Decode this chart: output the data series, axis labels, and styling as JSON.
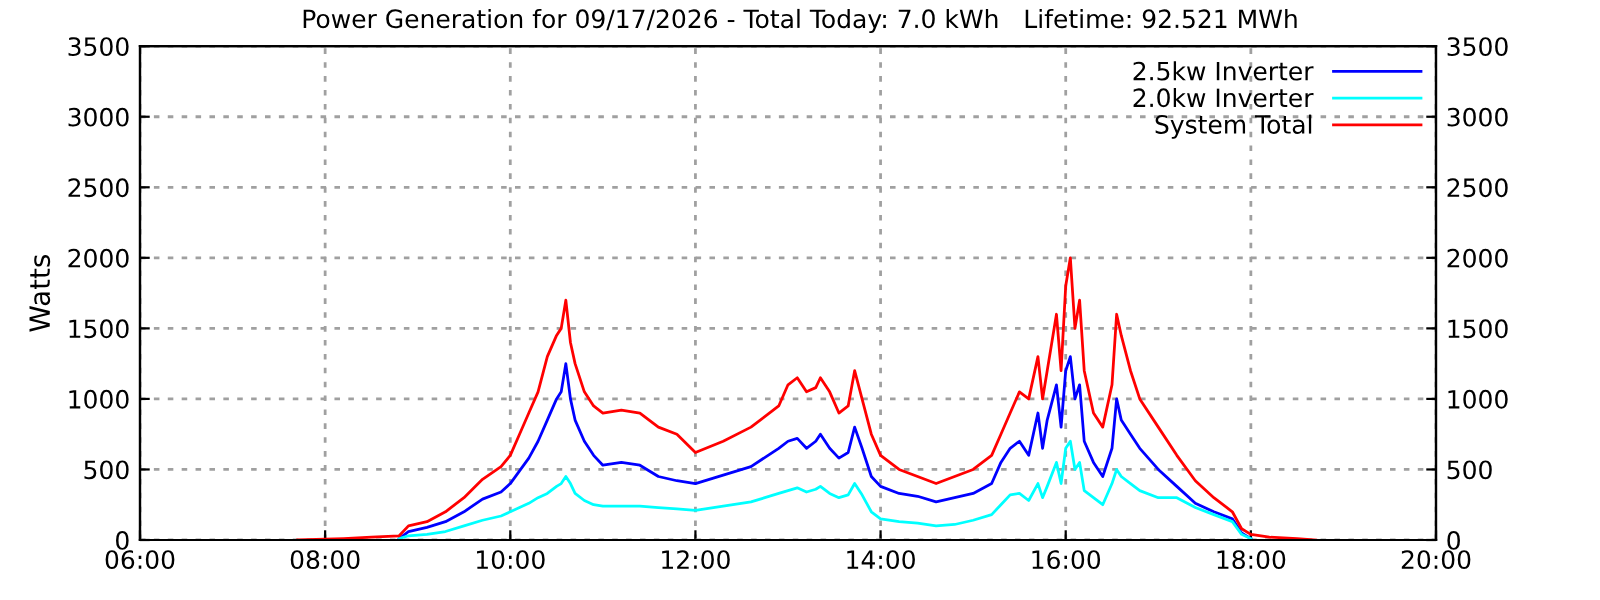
{
  "chart_data": {
    "type": "line",
    "title": "Power Generation for 09/17/2026 - Total Today: 7.0 kWh   Lifetime: 92.521 MWh",
    "ylabel": "Watts",
    "x": [
      7.7,
      8.2,
      8.5,
      8.8,
      8.9,
      9.1,
      9.3,
      9.5,
      9.7,
      9.9,
      10.0,
      10.1,
      10.2,
      10.3,
      10.4,
      10.5,
      10.55,
      10.6,
      10.65,
      10.7,
      10.8,
      10.9,
      11.0,
      11.2,
      11.4,
      11.6,
      11.8,
      12.0,
      12.3,
      12.6,
      12.9,
      13.0,
      13.1,
      13.2,
      13.3,
      13.35,
      13.45,
      13.55,
      13.65,
      13.72,
      13.8,
      13.9,
      14.0,
      14.2,
      14.4,
      14.6,
      14.8,
      15.0,
      15.2,
      15.3,
      15.4,
      15.5,
      15.6,
      15.7,
      15.75,
      15.8,
      15.9,
      15.95,
      16.0,
      16.05,
      16.1,
      16.15,
      16.2,
      16.3,
      16.4,
      16.5,
      16.55,
      16.6,
      16.7,
      16.8,
      17.0,
      17.2,
      17.4,
      17.6,
      17.8,
      17.9,
      18.0,
      18.2,
      18.5,
      18.7
    ],
    "series": [
      {
        "name": "2.5kw Inverter",
        "color": "#0000ff",
        "values": [
          null,
          null,
          null,
          10,
          60,
          90,
          130,
          200,
          290,
          340,
          400,
          490,
          580,
          700,
          850,
          1000,
          1050,
          1250,
          1000,
          850,
          700,
          600,
          530,
          550,
          530,
          450,
          420,
          400,
          460,
          520,
          650,
          700,
          720,
          650,
          700,
          750,
          650,
          580,
          620,
          800,
          650,
          450,
          380,
          330,
          310,
          270,
          300,
          330,
          400,
          550,
          650,
          700,
          600,
          900,
          650,
          850,
          1100,
          800,
          1200,
          1300,
          1000,
          1100,
          700,
          550,
          450,
          650,
          1000,
          850,
          750,
          650,
          500,
          380,
          260,
          200,
          150,
          50,
          10,
          null,
          null,
          null
        ]
      },
      {
        "name": "2.0kw Inverter",
        "color": "#00ffff",
        "values": [
          null,
          null,
          null,
          10,
          30,
          40,
          60,
          100,
          140,
          170,
          200,
          230,
          260,
          300,
          330,
          380,
          400,
          450,
          400,
          330,
          280,
          250,
          240,
          240,
          240,
          230,
          220,
          210,
          240,
          270,
          330,
          350,
          370,
          340,
          360,
          380,
          330,
          300,
          320,
          400,
          320,
          200,
          150,
          130,
          120,
          100,
          110,
          140,
          180,
          250,
          320,
          330,
          280,
          400,
          300,
          380,
          550,
          400,
          650,
          700,
          500,
          550,
          350,
          300,
          250,
          400,
          500,
          450,
          400,
          350,
          300,
          300,
          230,
          180,
          130,
          40,
          10,
          null,
          null,
          null
        ]
      },
      {
        "name": "System Total",
        "color": "#ff0000",
        "values": [
          0,
          10,
          20,
          30,
          100,
          130,
          200,
          300,
          430,
          520,
          600,
          750,
          900,
          1050,
          1300,
          1450,
          1500,
          1700,
          1400,
          1250,
          1050,
          950,
          900,
          920,
          900,
          800,
          750,
          620,
          700,
          800,
          950,
          1100,
          1150,
          1050,
          1080,
          1150,
          1050,
          900,
          950,
          1200,
          1000,
          750,
          600,
          500,
          450,
          400,
          450,
          500,
          600,
          750,
          900,
          1050,
          1000,
          1300,
          1000,
          1200,
          1600,
          1200,
          1800,
          2000,
          1500,
          1700,
          1200,
          900,
          800,
          1100,
          1600,
          1450,
          1200,
          1000,
          800,
          600,
          420,
          300,
          200,
          80,
          40,
          20,
          10,
          0
        ]
      }
    ],
    "xlim": [
      6,
      20
    ],
    "xticks": [
      {
        "value": 6,
        "label": "06:00"
      },
      {
        "value": 8,
        "label": "08:00"
      },
      {
        "value": 10,
        "label": "10:00"
      },
      {
        "value": 12,
        "label": "12:00"
      },
      {
        "value": 14,
        "label": "14:00"
      },
      {
        "value": 16,
        "label": "16:00"
      },
      {
        "value": 18,
        "label": "18:00"
      },
      {
        "value": 20,
        "label": "20:00"
      }
    ],
    "ylim": [
      0,
      3500
    ],
    "yticks": [
      0,
      500,
      1000,
      1500,
      2000,
      2500,
      3000,
      3500
    ],
    "y2lim": [
      0,
      3500
    ],
    "y2ticks": [
      0,
      500,
      1000,
      1500,
      2000,
      2500,
      3000,
      3500
    ],
    "grid": true,
    "legend": "top right",
    "line_style": "solid",
    "marker": "none"
  }
}
